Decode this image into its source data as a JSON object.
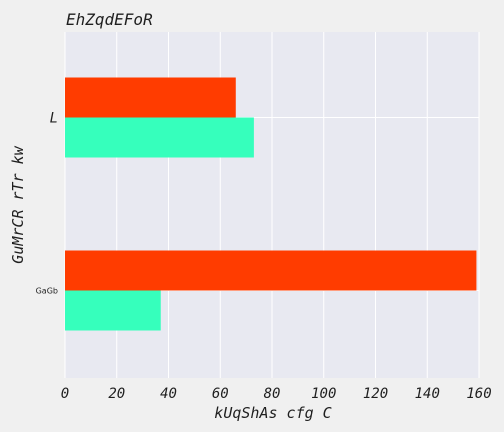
{
  "chart_data": {
    "type": "bar",
    "orientation": "horizontal",
    "title": "EhZqdEFoR",
    "xlabel": "kUqShAs  cfg C",
    "ylabel": "GuMrCR rTr kw",
    "categories": [
      "L",
      "GaGb"
    ],
    "series": [
      {
        "color": "#ff3c00",
        "values": [
          66,
          159
        ]
      },
      {
        "color": "#36ffbc",
        "values": [
          73,
          37
        ]
      }
    ],
    "xlim": [
      0,
      160
    ],
    "xticks": [
      "0",
      "20",
      "40",
      "60",
      "80",
      "100",
      "120",
      "140",
      "160"
    ],
    "grid": true,
    "legend": false
  },
  "style": {
    "plot_background": "#e8e9f1",
    "page_background": "#f0f0f0",
    "grid_color": "#ffffff",
    "text_color": "#1f1f1f"
  }
}
